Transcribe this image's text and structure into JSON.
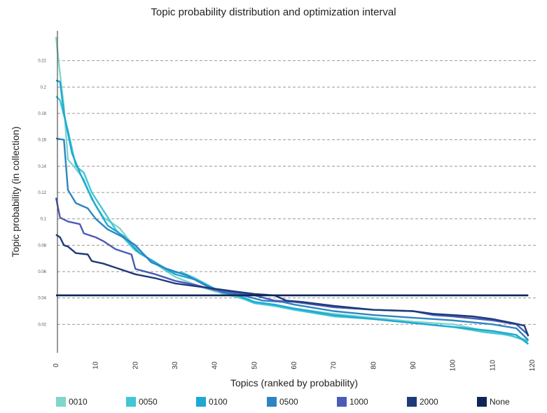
{
  "chart_data": {
    "type": "line",
    "title": "Topic probability distribution and optimization interval",
    "xlabel": "Topics (ranked by probability)",
    "ylabel": "Topic probability (in collection)",
    "xlim": [
      0,
      120
    ],
    "ylim": [
      0.0,
      0.24
    ],
    "x_ticks": [
      "0",
      "10",
      "20",
      "30",
      "40",
      "50",
      "60",
      "70",
      "80",
      "90",
      "100",
      "110",
      "120"
    ],
    "y_ticks": [
      "0.02",
      "0.04",
      "0.06",
      "0.08",
      "0.1",
      "0.12",
      "0.14",
      "0.16",
      "0.18",
      "0.2",
      "0.22"
    ],
    "grid": "horizontal dashed",
    "legend_position": "bottom",
    "series": [
      {
        "name": "0010",
        "color": "#7fd6c9",
        "points": [
          [
            0,
            0.238
          ],
          [
            1,
            0.21
          ],
          [
            2,
            0.185
          ],
          [
            3,
            0.145
          ],
          [
            5,
            0.138
          ],
          [
            7,
            0.13
          ],
          [
            9,
            0.115
          ],
          [
            12,
            0.101
          ],
          [
            16,
            0.093
          ],
          [
            20,
            0.078
          ],
          [
            25,
            0.066
          ],
          [
            30,
            0.056
          ],
          [
            35,
            0.05
          ],
          [
            40,
            0.045
          ],
          [
            45,
            0.041
          ],
          [
            50,
            0.037
          ],
          [
            55,
            0.034
          ],
          [
            60,
            0.032
          ],
          [
            70,
            0.028
          ],
          [
            80,
            0.025
          ],
          [
            90,
            0.022
          ],
          [
            100,
            0.02
          ],
          [
            105,
            0.017
          ],
          [
            110,
            0.014
          ],
          [
            115,
            0.011
          ],
          [
            119,
            0.008
          ]
        ]
      },
      {
        "name": "0050",
        "color": "#41c6d4",
        "points": [
          [
            0,
            0.193
          ],
          [
            1,
            0.19
          ],
          [
            3,
            0.167
          ],
          [
            5,
            0.14
          ],
          [
            7,
            0.135
          ],
          [
            9,
            0.12
          ],
          [
            12,
            0.106
          ],
          [
            15,
            0.092
          ],
          [
            20,
            0.076
          ],
          [
            25,
            0.067
          ],
          [
            28,
            0.06
          ],
          [
            32,
            0.059
          ],
          [
            35,
            0.055
          ],
          [
            40,
            0.047
          ],
          [
            45,
            0.042
          ],
          [
            50,
            0.036
          ],
          [
            55,
            0.034
          ],
          [
            60,
            0.031
          ],
          [
            70,
            0.026
          ],
          [
            80,
            0.024
          ],
          [
            90,
            0.021
          ],
          [
            100,
            0.018
          ],
          [
            108,
            0.014
          ],
          [
            114,
            0.012
          ],
          [
            119,
            0.007
          ]
        ]
      },
      {
        "name": "0100",
        "color": "#1ea8d4",
        "points": [
          [
            0,
            0.205
          ],
          [
            1,
            0.204
          ],
          [
            2,
            0.18
          ],
          [
            4,
            0.15
          ],
          [
            6,
            0.135
          ],
          [
            8,
            0.122
          ],
          [
            10,
            0.11
          ],
          [
            13,
            0.095
          ],
          [
            17,
            0.087
          ],
          [
            21,
            0.074
          ],
          [
            25,
            0.067
          ],
          [
            30,
            0.058
          ],
          [
            35,
            0.054
          ],
          [
            40,
            0.047
          ],
          [
            45,
            0.043
          ],
          [
            50,
            0.037
          ],
          [
            55,
            0.035
          ],
          [
            60,
            0.032
          ],
          [
            70,
            0.027
          ],
          [
            80,
            0.024
          ],
          [
            90,
            0.021
          ],
          [
            100,
            0.018
          ],
          [
            110,
            0.015
          ],
          [
            116,
            0.012
          ],
          [
            119,
            0.005
          ]
        ]
      },
      {
        "name": "0500",
        "color": "#2e84c2",
        "points": [
          [
            0,
            0.161
          ],
          [
            2,
            0.16
          ],
          [
            3,
            0.122
          ],
          [
            5,
            0.112
          ],
          [
            8,
            0.108
          ],
          [
            10,
            0.1
          ],
          [
            13,
            0.092
          ],
          [
            17,
            0.086
          ],
          [
            20,
            0.08
          ],
          [
            24,
            0.067
          ],
          [
            28,
            0.062
          ],
          [
            33,
            0.057
          ],
          [
            38,
            0.049
          ],
          [
            42,
            0.044
          ],
          [
            47,
            0.042
          ],
          [
            52,
            0.038
          ],
          [
            57,
            0.037
          ],
          [
            60,
            0.035
          ],
          [
            70,
            0.03
          ],
          [
            80,
            0.027
          ],
          [
            90,
            0.025
          ],
          [
            100,
            0.023
          ],
          [
            110,
            0.02
          ],
          [
            116,
            0.017
          ],
          [
            119,
            0.008
          ]
        ]
      },
      {
        "name": "1000",
        "color": "#4a5bb8",
        "points": [
          [
            0,
            0.116
          ],
          [
            1,
            0.101
          ],
          [
            3,
            0.098
          ],
          [
            6,
            0.096
          ],
          [
            7,
            0.089
          ],
          [
            10,
            0.086
          ],
          [
            12,
            0.083
          ],
          [
            15,
            0.077
          ],
          [
            19,
            0.073
          ],
          [
            20,
            0.062
          ],
          [
            25,
            0.058
          ],
          [
            30,
            0.053
          ],
          [
            35,
            0.05
          ],
          [
            40,
            0.046
          ],
          [
            45,
            0.044
          ],
          [
            50,
            0.042
          ],
          [
            55,
            0.038
          ],
          [
            60,
            0.037
          ],
          [
            70,
            0.033
          ],
          [
            80,
            0.031
          ],
          [
            90,
            0.03
          ],
          [
            95,
            0.027
          ],
          [
            100,
            0.026
          ],
          [
            110,
            0.023
          ],
          [
            116,
            0.02
          ],
          [
            119,
            0.012
          ]
        ]
      },
      {
        "name": "2000",
        "color": "#1e3a78",
        "points": [
          [
            0,
            0.088
          ],
          [
            1,
            0.086
          ],
          [
            2,
            0.08
          ],
          [
            3,
            0.079
          ],
          [
            5,
            0.074
          ],
          [
            8,
            0.073
          ],
          [
            9,
            0.068
          ],
          [
            12,
            0.066
          ],
          [
            15,
            0.063
          ],
          [
            20,
            0.058
          ],
          [
            25,
            0.055
          ],
          [
            30,
            0.051
          ],
          [
            35,
            0.049
          ],
          [
            40,
            0.047
          ],
          [
            45,
            0.045
          ],
          [
            50,
            0.043
          ],
          [
            55,
            0.042
          ],
          [
            58,
            0.038
          ],
          [
            62,
            0.037
          ],
          [
            70,
            0.034
          ],
          [
            80,
            0.031
          ],
          [
            90,
            0.03
          ],
          [
            95,
            0.028
          ],
          [
            100,
            0.027
          ],
          [
            105,
            0.026
          ],
          [
            110,
            0.024
          ],
          [
            115,
            0.021
          ],
          [
            118,
            0.019
          ],
          [
            119,
            0.011
          ]
        ]
      },
      {
        "name": "None",
        "color": "#0e2558",
        "points": [
          [
            0,
            0.042
          ],
          [
            119,
            0.042
          ]
        ]
      }
    ]
  }
}
